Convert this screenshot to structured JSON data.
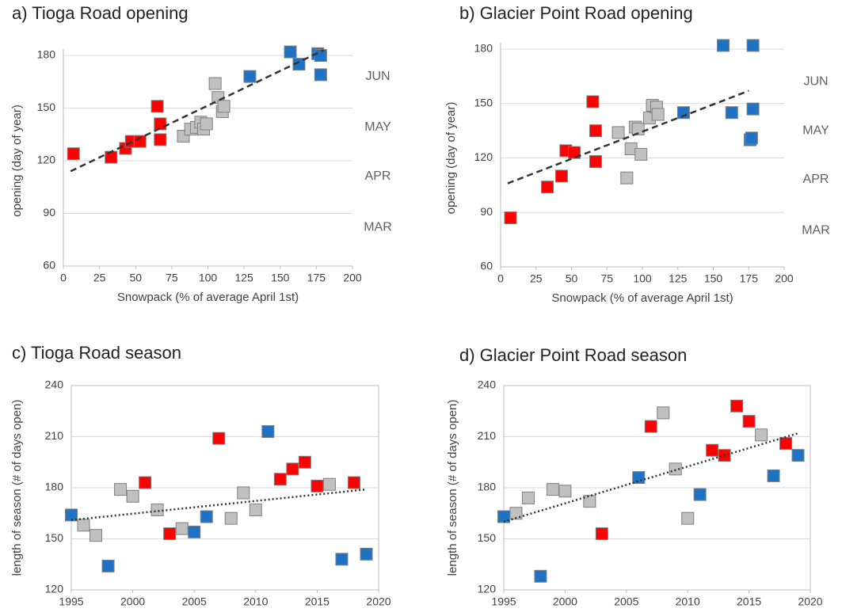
{
  "chart_data": [
    {
      "type": "scatter",
      "title": "a) Tioga Road opening",
      "x_label": "Snowpack (% of average April 1st)",
      "y_label": "opening  (day of year)",
      "xlim": [
        0,
        200
      ],
      "xticks": [
        0,
        25,
        50,
        75,
        100,
        125,
        150,
        175,
        200
      ],
      "ylim": [
        60,
        180
      ],
      "yticks": [
        60,
        90,
        120,
        150,
        180
      ],
      "grid": true,
      "box": false,
      "series": [
        {
          "color": "#ff0000",
          "x": [
            7,
            33,
            43,
            47,
            53,
            65,
            67,
            67
          ],
          "values": [
            124,
            122,
            127,
            131,
            131,
            151,
            141,
            132
          ]
        },
        {
          "color": "#c0c0c0",
          "x": [
            83,
            88,
            92,
            95,
            97,
            99,
            105,
            107,
            110,
            111
          ],
          "values": [
            134,
            138,
            139,
            142,
            138,
            141,
            164,
            156,
            148,
            151
          ]
        },
        {
          "color": "#1f72c4",
          "x": [
            129,
            157,
            163,
            176,
            178,
            178
          ],
          "values": [
            168,
            182,
            175,
            181,
            180,
            169
          ]
        }
      ],
      "trend": {
        "dash": "8,5",
        "x": [
          5,
          180
        ],
        "values": [
          114,
          183
        ]
      },
      "annotations": [
        {
          "text": "JUN",
          "y": 168
        },
        {
          "text": "MAY",
          "y": 139
        },
        {
          "text": "APR",
          "y": 111
        },
        {
          "text": "MAR",
          "y": 82
        }
      ]
    },
    {
      "type": "scatter",
      "title": "b) Glacier Point Road opening",
      "x_label": "Snowpack (% of average April 1st)",
      "y_label": "opening  (day of year)",
      "xlim": [
        0,
        200
      ],
      "xticks": [
        0,
        25,
        50,
        75,
        100,
        125,
        150,
        175,
        200
      ],
      "ylim": [
        60,
        180
      ],
      "yticks": [
        60,
        90,
        120,
        150,
        180
      ],
      "grid": true,
      "box": false,
      "series": [
        {
          "color": "#ff0000",
          "x": [
            7,
            33,
            43,
            46,
            52,
            65,
            67,
            67
          ],
          "values": [
            87,
            104,
            110,
            124,
            123,
            151,
            135,
            118
          ]
        },
        {
          "color": "#c0c0c0",
          "x": [
            83,
            89,
            92,
            95,
            97,
            99,
            105,
            107,
            110,
            111
          ],
          "values": [
            134,
            109,
            125,
            137,
            136,
            122,
            142,
            149,
            148,
            144
          ]
        },
        {
          "color": "#1f72c4",
          "x": [
            129,
            157,
            163,
            176,
            177,
            178,
            178
          ],
          "values": [
            145,
            182,
            145,
            130,
            131,
            147,
            182
          ]
        }
      ],
      "trend": {
        "dash": "8,5",
        "x": [
          5,
          175
        ],
        "values": [
          106,
          157
        ]
      },
      "annotations": [
        {
          "text": "JUN",
          "y": 162
        },
        {
          "text": "MAY",
          "y": 135
        },
        {
          "text": "APR",
          "y": 108
        },
        {
          "text": "MAR",
          "y": 80
        }
      ]
    },
    {
      "type": "scatter",
      "title": "c) Tioga Road season",
      "y_label": "length of season (# of days open)",
      "xlim": [
        1995,
        2020
      ],
      "xticks": [
        1995,
        2000,
        2005,
        2010,
        2015,
        2020
      ],
      "ylim": [
        120,
        240
      ],
      "yticks": [
        120,
        150,
        180,
        210,
        240
      ],
      "grid": true,
      "box": true,
      "series": [
        {
          "color": "#1f72c4",
          "x": [
            1995,
            1998,
            2005,
            2006,
            2011,
            2017,
            2019
          ],
          "values": [
            164,
            134,
            154,
            163,
            213,
            138,
            141
          ]
        },
        {
          "color": "#c0c0c0",
          "x": [
            1996,
            1997,
            1999,
            2000,
            2002,
            2004,
            2008,
            2009,
            2010,
            2016
          ],
          "values": [
            158,
            152,
            179,
            175,
            167,
            156,
            162,
            177,
            167,
            182
          ]
        },
        {
          "color": "#ff0000",
          "x": [
            2001,
            2003,
            2007,
            2012,
            2013,
            2014,
            2015,
            2018
          ],
          "values": [
            183,
            153,
            209,
            185,
            191,
            195,
            181,
            183
          ]
        }
      ],
      "trend": {
        "dash": "2,3",
        "x": [
          1995,
          2019
        ],
        "values": [
          161,
          179
        ]
      }
    },
    {
      "type": "scatter",
      "title": "d) Glacier Point Road season",
      "y_label": "length of season (# of days open)",
      "xlim": [
        1995,
        2020
      ],
      "xticks": [
        1995,
        2000,
        2005,
        2010,
        2015,
        2020
      ],
      "ylim": [
        120,
        240
      ],
      "yticks": [
        120,
        150,
        180,
        210,
        240
      ],
      "grid": true,
      "box": true,
      "series": [
        {
          "color": "#1f72c4",
          "x": [
            1995,
            1998,
            2006,
            2011,
            2017,
            2019
          ],
          "values": [
            163,
            128,
            186,
            176,
            187,
            199
          ]
        },
        {
          "color": "#c0c0c0",
          "x": [
            1996,
            1997,
            1999,
            2000,
            2002,
            2008,
            2009,
            2010,
            2016
          ],
          "values": [
            165,
            174,
            179,
            178,
            172,
            224,
            191,
            162,
            211
          ]
        },
        {
          "color": "#ff0000",
          "x": [
            2003,
            2007,
            2012,
            2013,
            2014,
            2015,
            2018
          ],
          "values": [
            153,
            216,
            202,
            199,
            228,
            219,
            206
          ]
        }
      ],
      "trend": {
        "dash": "2,3",
        "x": [
          1995,
          2019
        ],
        "values": [
          160,
          212
        ]
      }
    }
  ]
}
